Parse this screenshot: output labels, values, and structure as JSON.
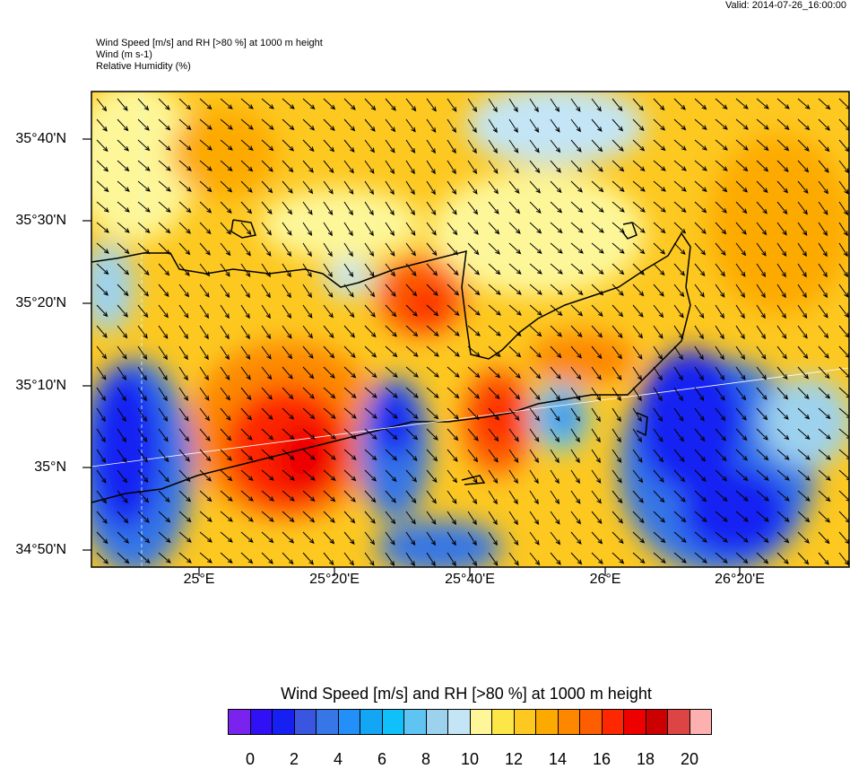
{
  "valid": "Valid: 2014-07-26_16:00:00",
  "titles": [
    "Wind Speed [m/s] and RH [>80 %] at 1000 m height",
    "Wind   (m s-1)",
    "Relative Humidity   (%)"
  ],
  "map": {
    "lat_labels": [
      "35°40'N",
      "35°30'N",
      "35°20'N",
      "35°10'N",
      "35°N",
      "34°50'N"
    ],
    "lon_labels": [
      "25°E",
      "25°20'E",
      "25°40'E",
      "26°E",
      "26°20'E"
    ],
    "wind_direction": "from northwest (arrows pointing southeast)"
  },
  "colorbar": {
    "title": "Wind Speed [m/s] and RH [>80 %] at 1000 m height",
    "labels": [
      "0",
      "2",
      "4",
      "6",
      "8",
      "10",
      "12",
      "14",
      "16",
      "18",
      "20"
    ],
    "colors": [
      "#7a22ee",
      "#3010f5",
      "#1620f2",
      "#3a55e0",
      "#3676e6",
      "#2290f8",
      "#12a6f5",
      "#10c0fa",
      "#60c4f2",
      "#9dd2ee",
      "#c3e5f5",
      "#fdf79a",
      "#fde648",
      "#fdc820",
      "#fdaa00",
      "#fd8800",
      "#fd5e00",
      "#fd2800",
      "#ee0000",
      "#cc0000",
      "#dd4444",
      "#fdb0b0"
    ]
  }
}
